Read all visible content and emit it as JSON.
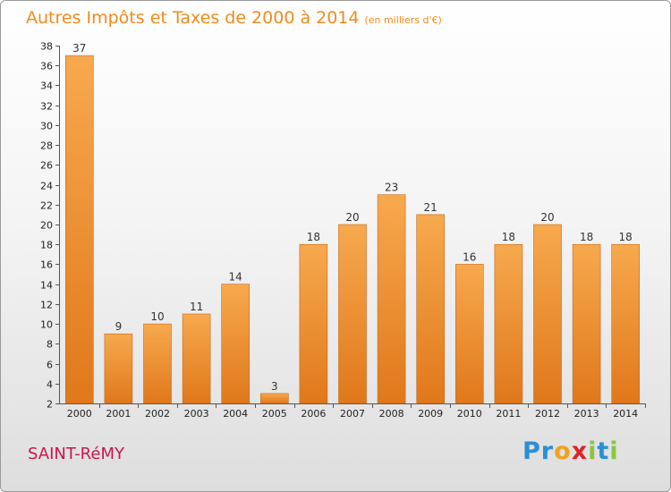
{
  "header": {
    "title": "Autres Impôts et Taxes de 2000 à 2014",
    "unit": "(en milliers d'€)"
  },
  "footer": {
    "town": "SAINT-RéMY",
    "logo_letters": [
      {
        "char": "P",
        "color": "#2a8fd6"
      },
      {
        "char": "r",
        "color": "#2a8fd6"
      },
      {
        "char": "o",
        "color": "#f0a21e"
      },
      {
        "char": "x",
        "color": "#e02424"
      },
      {
        "char": "i",
        "color": "#8cc63f"
      },
      {
        "char": "t",
        "color": "#2a8fd6"
      },
      {
        "char": "i",
        "color": "#8cc63f"
      }
    ]
  },
  "colors": {
    "bar_light": "#f7a94e",
    "bar_dark": "#e0781b",
    "title": "#f08a1e",
    "town": "#c8174f"
  },
  "chart_data": {
    "type": "bar",
    "title": "Autres Impôts et Taxes de 2000 à 2014",
    "subtitle": "(en milliers d'€)",
    "categories": [
      "2000",
      "2001",
      "2002",
      "2003",
      "2004",
      "2005",
      "2006",
      "2007",
      "2008",
      "2009",
      "2010",
      "2011",
      "2012",
      "2013",
      "2014"
    ],
    "values": [
      37,
      9,
      10,
      11,
      14,
      3,
      18,
      20,
      23,
      21,
      16,
      18,
      20,
      18,
      18
    ],
    "ylim": [
      2,
      38
    ],
    "yticks": [
      2,
      4,
      6,
      8,
      10,
      12,
      14,
      16,
      18,
      20,
      22,
      24,
      26,
      28,
      30,
      32,
      34,
      36,
      38
    ],
    "grid": false,
    "legend": "none"
  }
}
